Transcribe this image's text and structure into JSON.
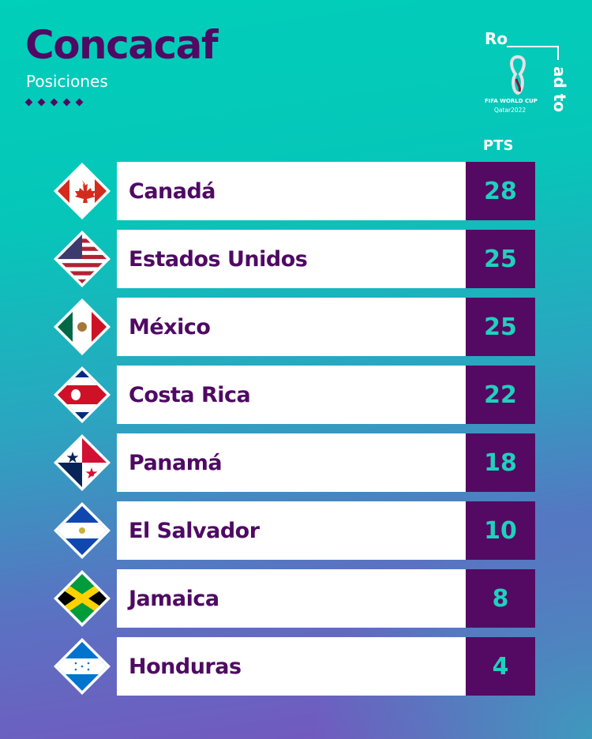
{
  "header": {
    "title": "Concacaf",
    "subtitle": "Posiciones"
  },
  "logo": {
    "line1": "Ro",
    "line2": "ad to",
    "caption1": "FIFA WORLD CUP",
    "caption2": "Qatar2022"
  },
  "column_header": "PTS",
  "colors": {
    "purple": "#540a62",
    "teal": "#1fd1bd",
    "background_top": "#00cfb9",
    "background_bottom": "#7754be"
  },
  "standings": [
    {
      "team": "Canadá",
      "points": "28",
      "flag": "canada-flag"
    },
    {
      "team": "Estados Unidos",
      "points": "25",
      "flag": "usa-flag"
    },
    {
      "team": "México",
      "points": "25",
      "flag": "mexico-flag"
    },
    {
      "team": "Costa Rica",
      "points": "22",
      "flag": "costa-rica-flag"
    },
    {
      "team": "Panamá",
      "points": "18",
      "flag": "panama-flag"
    },
    {
      "team": "El Salvador",
      "points": "10",
      "flag": "el-salvador-flag"
    },
    {
      "team": "Jamaica",
      "points": "8",
      "flag": "jamaica-flag"
    },
    {
      "team": "Honduras",
      "points": "4",
      "flag": "honduras-flag"
    }
  ]
}
